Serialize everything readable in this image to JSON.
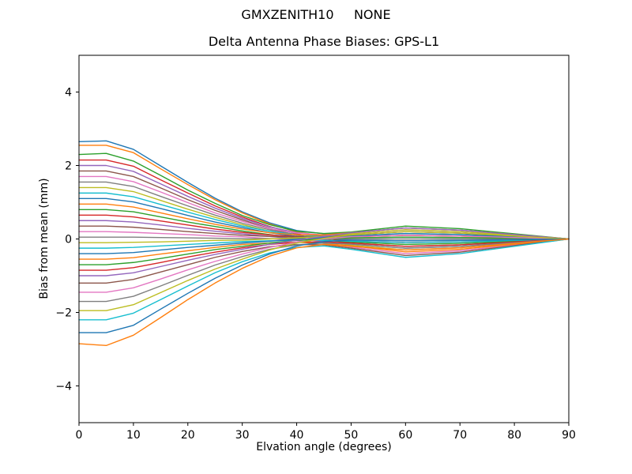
{
  "figure": {
    "suptitle": "GMXZENITH10     NONE",
    "background": "#ffffff"
  },
  "chart_data": {
    "type": "line",
    "title": "Delta Antenna Phase Biases: GPS-L1",
    "xlabel": "Elvation angle (degrees)",
    "ylabel": "Bias from mean (mm)",
    "xlim": [
      0,
      90
    ],
    "ylim": [
      -5,
      5
    ],
    "x_ticks": [
      0,
      10,
      20,
      30,
      40,
      50,
      60,
      70,
      80,
      90
    ],
    "x_tick_labels": [
      "0",
      "10",
      "20",
      "30",
      "40",
      "50",
      "60",
      "70",
      "80",
      "90"
    ],
    "y_ticks": [
      -4,
      -2,
      0,
      2,
      4
    ],
    "y_tick_labels": [
      "−4",
      "−2",
      "0",
      "2",
      "4"
    ],
    "grid": false,
    "legend": "none",
    "palette": [
      "#1f77b4",
      "#ff7f0e",
      "#2ca02c",
      "#d62728",
      "#9467bd",
      "#8c564b",
      "#e377c2",
      "#7f7f7f",
      "#bcbd22",
      "#17becf"
    ],
    "x": [
      0,
      5,
      10,
      15,
      20,
      25,
      30,
      35,
      40,
      45,
      50,
      60,
      70,
      80,
      90
    ],
    "series": [
      {
        "values": [
          2.65,
          2.67,
          2.44,
          1.99,
          1.54,
          1.11,
          0.74,
          0.44,
          0.23,
          0.14,
          0.17,
          0.3,
          0.24,
          0.12,
          0.0
        ]
      },
      {
        "values": [
          2.55,
          2.55,
          2.35,
          1.91,
          1.48,
          1.07,
          0.71,
          0.41,
          0.19,
          0.08,
          0.06,
          0.1,
          0.08,
          0.04,
          0.0
        ]
      },
      {
        "values": [
          2.3,
          2.33,
          2.12,
          1.73,
          1.33,
          0.97,
          0.64,
          0.39,
          0.21,
          0.15,
          0.19,
          0.35,
          0.28,
          0.14,
          0.0
        ]
      },
      {
        "values": [
          2.15,
          2.15,
          1.98,
          1.61,
          1.25,
          0.9,
          0.6,
          0.34,
          0.14,
          0.01,
          -0.06,
          -0.1,
          -0.08,
          -0.04,
          0.0
        ]
      },
      {
        "values": [
          2.0,
          2.0,
          1.84,
          1.5,
          1.16,
          0.84,
          0.56,
          0.33,
          0.17,
          0.1,
          0.11,
          0.2,
          0.16,
          0.08,
          0.0
        ]
      },
      {
        "values": [
          1.85,
          1.85,
          1.7,
          1.39,
          1.07,
          0.78,
          0.52,
          0.29,
          0.1,
          -0.02,
          -0.11,
          -0.2,
          -0.16,
          -0.08,
          0.0
        ]
      },
      {
        "values": [
          1.7,
          1.7,
          1.56,
          1.28,
          0.99,
          0.71,
          0.48,
          0.28,
          0.16,
          0.11,
          0.14,
          0.25,
          0.2,
          0.1,
          0.0
        ]
      },
      {
        "values": [
          1.55,
          1.55,
          1.43,
          1.16,
          0.9,
          0.65,
          0.43,
          0.25,
          0.12,
          0.05,
          0.03,
          0.05,
          0.04,
          0.02,
          0.0
        ]
      },
      {
        "values": [
          1.4,
          1.4,
          1.29,
          1.05,
          0.81,
          0.59,
          0.39,
          0.21,
          0.05,
          -0.06,
          -0.17,
          -0.3,
          -0.24,
          -0.12,
          0.0
        ]
      },
      {
        "values": [
          1.25,
          1.25,
          1.15,
          0.94,
          0.73,
          0.53,
          0.35,
          0.21,
          0.11,
          0.07,
          0.08,
          0.15,
          0.12,
          0.06,
          0.0
        ]
      },
      {
        "values": [
          1.1,
          1.1,
          1.01,
          0.83,
          0.64,
          0.46,
          0.31,
          0.17,
          0.07,
          0.01,
          -0.03,
          -0.05,
          -0.04,
          -0.02,
          0.0
        ]
      },
      {
        "values": [
          0.95,
          0.95,
          0.87,
          0.71,
          0.55,
          0.4,
          0.27,
          0.17,
          0.11,
          0.11,
          0.17,
          0.3,
          0.24,
          0.12,
          0.0
        ]
      },
      {
        "values": [
          0.8,
          0.8,
          0.74,
          0.6,
          0.46,
          0.34,
          0.22,
          0.12,
          0.03,
          -0.03,
          -0.08,
          -0.15,
          -0.12,
          -0.06,
          0.0
        ]
      },
      {
        "values": [
          0.65,
          0.65,
          0.6,
          0.49,
          0.38,
          0.27,
          0.18,
          0.11,
          0.06,
          0.04,
          0.06,
          0.1,
          0.08,
          0.04,
          0.0
        ]
      },
      {
        "values": [
          0.5,
          0.5,
          0.46,
          0.38,
          0.29,
          0.21,
          0.14,
          0.07,
          0.0,
          -0.07,
          -0.14,
          -0.25,
          -0.2,
          -0.1,
          0.0
        ]
      },
      {
        "values": [
          0.35,
          0.35,
          0.32,
          0.26,
          0.2,
          0.15,
          0.1,
          0.07,
          0.05,
          0.07,
          0.11,
          0.2,
          0.16,
          0.08,
          0.0
        ]
      },
      {
        "values": [
          0.2,
          0.2,
          0.18,
          0.15,
          0.12,
          0.08,
          0.06,
          0.01,
          -0.05,
          -0.12,
          -0.22,
          -0.4,
          -0.32,
          -0.16,
          0.0
        ]
      },
      {
        "values": [
          0.05,
          0.05,
          0.05,
          0.04,
          0.03,
          0.02,
          0.01,
          0.01,
          0.0,
          0.0,
          0.0,
          0.0,
          0.0,
          0.0,
          0.0
        ]
      },
      {
        "values": [
          -0.1,
          -0.1,
          -0.09,
          -0.08,
          -0.06,
          -0.04,
          -0.03,
          0.0,
          0.03,
          0.07,
          0.14,
          0.25,
          0.2,
          0.1,
          0.0
        ]
      },
      {
        "values": [
          -0.25,
          -0.25,
          -0.23,
          -0.19,
          -0.15,
          -0.11,
          -0.07,
          -0.05,
          -0.03,
          -0.04,
          -0.06,
          -0.1,
          -0.08,
          -0.04,
          0.0
        ]
      },
      {
        "values": [
          -0.4,
          -0.4,
          -0.37,
          -0.3,
          -0.23,
          -0.17,
          -0.11,
          -0.06,
          -0.01,
          0.04,
          0.08,
          0.15,
          0.12,
          0.06,
          0.0
        ]
      },
      {
        "values": [
          -0.55,
          -0.55,
          -0.51,
          -0.41,
          -0.32,
          -0.23,
          -0.15,
          -0.11,
          -0.09,
          -0.12,
          -0.19,
          -0.35,
          -0.28,
          -0.14,
          0.0
        ]
      },
      {
        "values": [
          -0.7,
          -0.7,
          -0.64,
          -0.53,
          -0.41,
          -0.29,
          -0.2,
          -0.11,
          -0.04,
          0.0,
          0.03,
          0.05,
          0.04,
          0.02,
          0.0
        ]
      },
      {
        "values": [
          -0.85,
          -0.85,
          -0.78,
          -0.64,
          -0.49,
          -0.36,
          -0.24,
          -0.15,
          -0.09,
          -0.08,
          -0.11,
          -0.2,
          -0.16,
          -0.08,
          0.0
        ]
      },
      {
        "values": [
          -1.0,
          -1.0,
          -0.92,
          -0.75,
          -0.58,
          -0.42,
          -0.28,
          -0.15,
          -0.03,
          0.07,
          0.17,
          0.3,
          0.24,
          0.12,
          0.0
        ]
      },
      {
        "values": [
          -1.2,
          -1.2,
          -1.1,
          -0.9,
          -0.7,
          -0.5,
          -0.34,
          -0.21,
          -0.15,
          -0.16,
          -0.25,
          -0.45,
          -0.36,
          -0.18,
          0.0
        ]
      },
      {
        "values": [
          -1.45,
          -1.45,
          -1.33,
          -1.09,
          -0.84,
          -0.61,
          -0.41,
          -0.23,
          -0.09,
          0.0,
          0.06,
          0.1,
          0.08,
          0.04,
          0.0
        ]
      },
      {
        "values": [
          -1.7,
          -1.7,
          -1.56,
          -1.28,
          -0.99,
          -0.71,
          -0.48,
          -0.28,
          -0.16,
          -0.11,
          -0.14,
          -0.25,
          -0.2,
          -0.1,
          0.0
        ]
      },
      {
        "values": [
          -1.95,
          -1.95,
          -1.79,
          -1.46,
          -1.13,
          -0.82,
          -0.55,
          -0.3,
          -0.11,
          0.02,
          0.11,
          0.2,
          0.16,
          0.08,
          0.0
        ]
      },
      {
        "values": [
          -2.2,
          -2.2,
          -2.02,
          -1.65,
          -1.28,
          -0.92,
          -0.62,
          -0.38,
          -0.23,
          -0.19,
          -0.28,
          -0.5,
          -0.4,
          -0.2,
          0.0
        ]
      },
      {
        "values": [
          -2.55,
          -2.55,
          -2.35,
          -1.91,
          -1.48,
          -1.07,
          -0.71,
          -0.41,
          -0.19,
          -0.07,
          -0.03,
          -0.05,
          -0.04,
          -0.02,
          0.0
        ]
      },
      {
        "values": [
          -2.85,
          -2.9,
          -2.62,
          -2.14,
          -1.65,
          -1.2,
          -0.8,
          -0.47,
          -0.24,
          -0.15,
          -0.2,
          -0.3,
          -0.24,
          -0.12,
          0.0
        ]
      }
    ]
  }
}
